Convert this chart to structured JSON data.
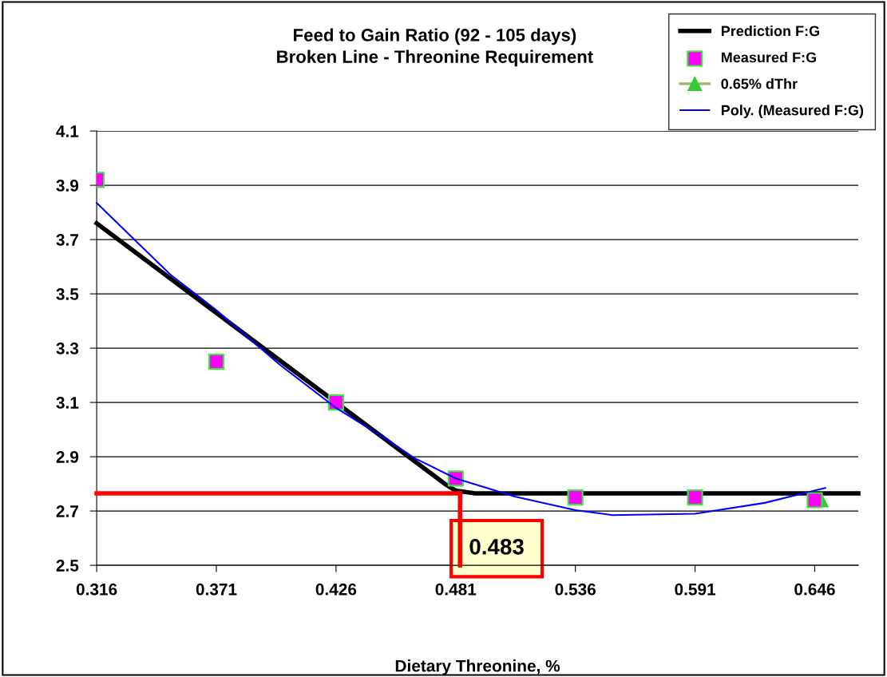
{
  "chart_data": {
    "type": "line",
    "title": "Feed to Gain Ratio (92 - 105 days)\nBroken Line - Threonine Requirement",
    "xlabel": "Dietary Threonine, %",
    "xlim": [
      0.316,
      0.666
    ],
    "xticks": [
      0.316,
      0.371,
      0.426,
      0.481,
      0.536,
      0.591,
      0.646
    ],
    "ylim": [
      2.5,
      4.1
    ],
    "yticks": [
      2.5,
      2.7,
      2.9,
      3.1,
      3.3,
      3.5,
      3.7,
      3.9,
      4.1
    ],
    "grid": "y",
    "legend": "top right",
    "series": [
      {
        "name": "Prediction F:G",
        "color": "#000000",
        "x": [
          0.316,
          0.476,
          0.481,
          0.49,
          0.666
        ],
        "values": [
          3.76,
          2.8,
          2.775,
          2.765,
          2.765
        ]
      },
      {
        "name": "Measured F:G",
        "type": "scatter",
        "marker": "square",
        "color": "#ff00ff",
        "x": [
          0.316,
          0.371,
          0.426,
          0.481,
          0.536,
          0.591,
          0.646
        ],
        "values": [
          3.92,
          3.25,
          3.1,
          2.82,
          2.75,
          2.75,
          2.74
        ]
      },
      {
        "name": "0.65% dThr",
        "type": "scatter",
        "marker": "triangle",
        "color": "#33cc33",
        "x": [
          0.649
        ],
        "values": [
          2.74
        ]
      },
      {
        "name": "Poly. (Measured F:G)",
        "color": "#0000ff",
        "x": [
          0.316,
          0.35,
          0.371,
          0.4,
          0.426,
          0.45,
          0.4616,
          0.481,
          0.5082,
          0.536,
          0.553,
          0.591,
          0.623,
          0.6508
        ],
        "values": [
          3.835,
          3.57,
          3.44,
          3.24,
          3.08,
          2.96,
          2.897,
          2.82,
          2.753,
          2.703,
          2.685,
          2.69,
          2.73,
          2.785
        ]
      },
      {
        "color": "#ff0000",
        "x": [
          0.316,
          0.483
        ],
        "values": [
          2.765,
          2.765
        ]
      },
      {
        "color": "#ff0000",
        "x": [
          0.483,
          0.483
        ],
        "values": [
          2.5,
          2.765
        ]
      }
    ],
    "annotations": [
      {
        "text": "0.483",
        "x": 0.483,
        "y": 2.765
      }
    ]
  }
}
